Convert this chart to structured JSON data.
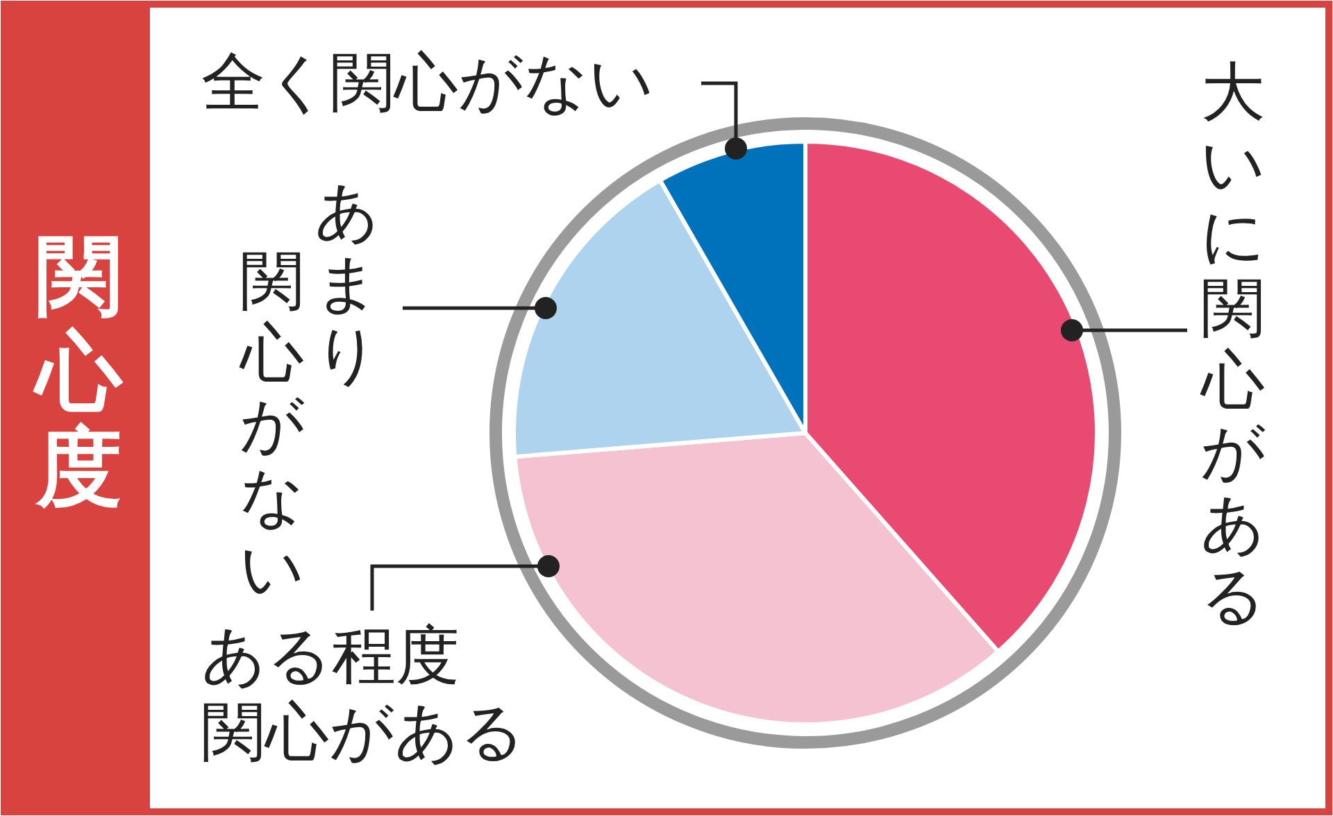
{
  "chart_data": {
    "type": "pie",
    "title": "関心度",
    "categories": [
      "大いに関心がある",
      "ある程度関心がある",
      "あまり関心がない",
      "全く関心がない"
    ],
    "values": [
      38.5,
      35.2,
      18.0,
      8.3
    ],
    "colors": [
      "#e84a72",
      "#f4c2d0",
      "#aed3ef",
      "#0072bc"
    ]
  }
}
